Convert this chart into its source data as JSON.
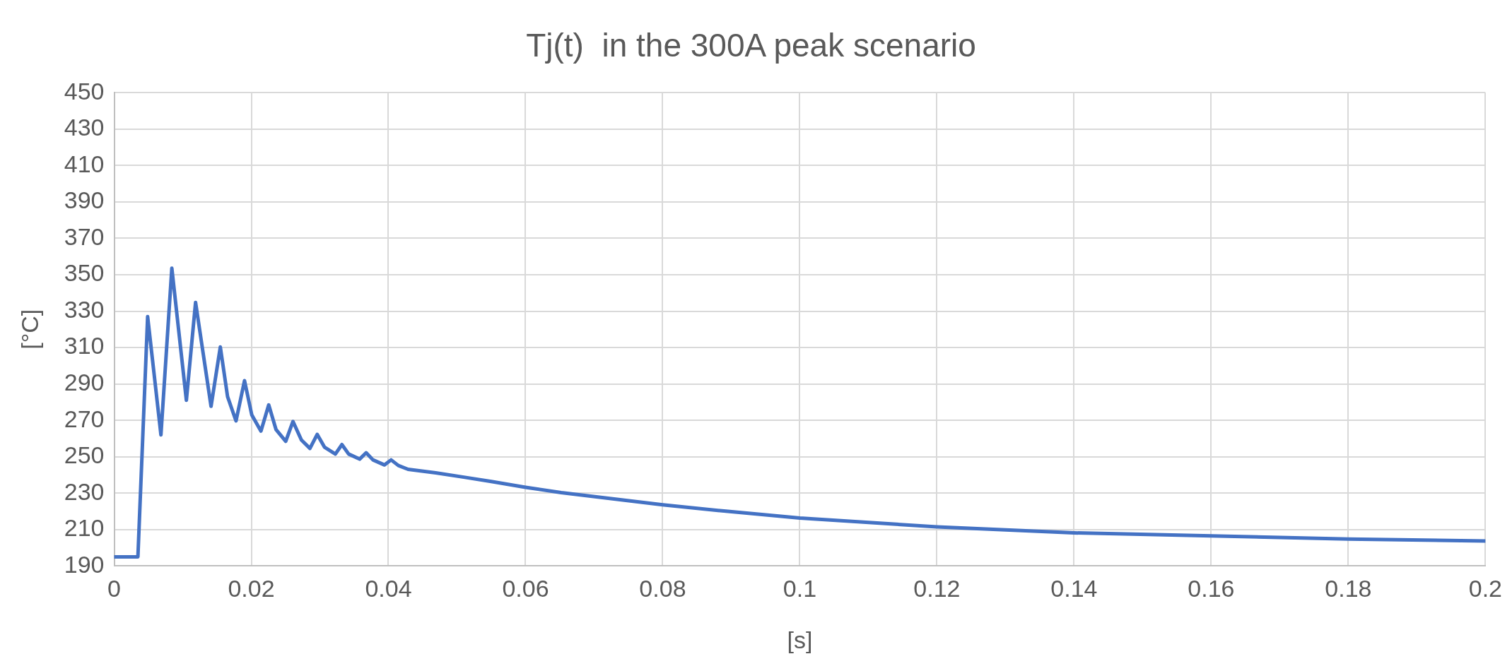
{
  "chart_data": {
    "type": "line",
    "title": "Tj(t)  in the 300A peak scenario",
    "xlabel": "[s]",
    "ylabel": "[°C]",
    "x": [
      0,
      0.00346,
      0.00488,
      0.00682,
      0.00841,
      0.01053,
      0.01187,
      0.01413,
      0.01548,
      0.01654,
      0.01777,
      0.01901,
      0.02007,
      0.02141,
      0.02254,
      0.0236,
      0.02502,
      0.02608,
      0.02731,
      0.02855,
      0.02961,
      0.03067,
      0.03226,
      0.03322,
      0.0342,
      0.0358,
      0.03675,
      0.03774,
      0.03943,
      0.04039,
      0.04145,
      0.04286,
      0.0469,
      0.051,
      0.055,
      0.06,
      0.0652,
      0.0712,
      0.08,
      0.0895,
      0.1,
      0.12,
      0.14,
      0.16,
      0.18,
      0.2
    ],
    "series": [
      {
        "color": "#4472c4",
        "values": [
          195,
          195,
          327,
          262,
          353.6,
          281,
          334.8,
          277.7,
          310.3,
          283,
          269.7,
          291.8,
          273,
          264.1,
          278.5,
          265,
          258.5,
          269.4,
          259.2,
          254.6,
          262.3,
          255.3,
          251.5,
          256.7,
          251.5,
          248.7,
          252.2,
          248.3,
          245.5,
          248.3,
          245.2,
          243.1,
          241.2,
          238.8,
          236.4,
          233.2,
          230.3,
          227.6,
          223.6,
          220,
          216.3,
          211.5,
          208.2,
          206.5,
          204.8,
          203.7
        ]
      }
    ],
    "xlim": [
      0,
      0.2
    ],
    "xticks": [
      0,
      0.02,
      0.04,
      0.06,
      0.08,
      0.1,
      0.12,
      0.14,
      0.16,
      0.18,
      0.2
    ],
    "ylim": [
      190,
      450
    ],
    "yticks": [
      190,
      210,
      230,
      250,
      270,
      290,
      310,
      330,
      350,
      370,
      390,
      410,
      430,
      450
    ],
    "grid": true,
    "legend": false,
    "marker": "none",
    "line_style": "solid"
  }
}
